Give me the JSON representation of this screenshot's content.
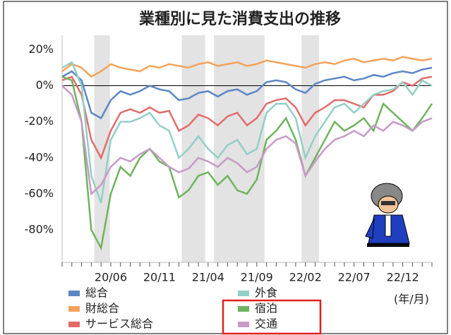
{
  "chart_data": {
    "type": "line",
    "title": "業種別に見た消費支出の推移",
    "x_label": "(年/月)",
    "categories": [
      null,
      null,
      null,
      null,
      null,
      "20/06",
      null,
      null,
      null,
      null,
      "20/11",
      null,
      null,
      null,
      null,
      "21/04",
      null,
      null,
      null,
      null,
      "21/09",
      null,
      null,
      null,
      null,
      "22/02",
      null,
      null,
      null,
      null,
      "22/07",
      null,
      null,
      null,
      null,
      "22/12",
      null,
      null,
      null
    ],
    "shaded_periods": [
      [
        3.3,
        4.9
      ],
      [
        12.3,
        14.7
      ],
      [
        15.6,
        20.8
      ],
      [
        24.6,
        26.4
      ]
    ],
    "ylim": [
      -98,
      28
    ],
    "yticks": [
      {
        "value": 20,
        "label": "20%"
      },
      {
        "value": 0,
        "label": "0%"
      },
      {
        "value": -20,
        "label": "-20%"
      },
      {
        "value": -40,
        "label": "-40%"
      },
      {
        "value": -60,
        "label": "-60%"
      },
      {
        "value": -80,
        "label": "-80%"
      }
    ],
    "series": [
      {
        "name": "総合",
        "color": "#5b87c5",
        "values": [
          5,
          8,
          3,
          -15,
          -18,
          -8,
          -3,
          -5,
          -3,
          0,
          -2,
          -3,
          -8,
          -7,
          -4,
          -3,
          -6,
          -3,
          -2,
          -5,
          -3,
          2,
          3,
          2,
          -2,
          -4,
          1,
          3,
          4,
          5,
          3,
          4,
          6,
          5,
          7,
          8,
          7,
          9,
          10
        ]
      },
      {
        "name": "財総合",
        "color": "#f4a259",
        "values": [
          8,
          12,
          10,
          5,
          8,
          12,
          10,
          9,
          8,
          11,
          10,
          12,
          11,
          10,
          12,
          13,
          11,
          12,
          13,
          11,
          12,
          14,
          13,
          12,
          11,
          10,
          12,
          13,
          12,
          14,
          15,
          13,
          14,
          15,
          14,
          16,
          15,
          14,
          15
        ]
      },
      {
        "name": "サービス総合",
        "color": "#e46b6b",
        "values": [
          3,
          5,
          -5,
          -30,
          -40,
          -25,
          -15,
          -13,
          -15,
          -12,
          -15,
          -14,
          -25,
          -22,
          -16,
          -18,
          -22,
          -17,
          -15,
          -22,
          -18,
          -10,
          -8,
          -7,
          -12,
          -22,
          -15,
          -12,
          -8,
          -8,
          -10,
          -12,
          -5,
          -5,
          -3,
          2,
          0,
          4,
          5
        ]
      },
      {
        "name": "外食",
        "color": "#93cfc6",
        "values": [
          10,
          13,
          0,
          -50,
          -65,
          -30,
          -20,
          -20,
          -18,
          -15,
          -22,
          -25,
          -40,
          -35,
          -28,
          -35,
          -40,
          -33,
          -30,
          -38,
          -35,
          -15,
          -10,
          -10,
          -18,
          -40,
          -28,
          -20,
          -12,
          -10,
          -15,
          -10,
          -5,
          -3,
          -2,
          2,
          -5,
          3,
          0
        ]
      },
      {
        "name": "宿泊",
        "color": "#6fb35e",
        "values": [
          5,
          3,
          -20,
          -80,
          -90,
          -60,
          -45,
          -50,
          -40,
          -35,
          -42,
          -45,
          -62,
          -58,
          -50,
          -48,
          -55,
          -50,
          -58,
          -60,
          -52,
          -30,
          -25,
          -18,
          -30,
          -50,
          -40,
          -30,
          -20,
          -25,
          -22,
          -18,
          -25,
          -10,
          -15,
          -20,
          -25,
          -18,
          -10
        ]
      },
      {
        "name": "交通",
        "color": "#c79ac7",
        "values": [
          0,
          -5,
          -20,
          -60,
          -55,
          -45,
          -40,
          -42,
          -38,
          -35,
          -40,
          -45,
          -48,
          -46,
          -40,
          -42,
          -45,
          -40,
          -43,
          -48,
          -45,
          -35,
          -30,
          -28,
          -32,
          -50,
          -42,
          -35,
          -30,
          -28,
          -25,
          -28,
          -22,
          -25,
          -20,
          -22,
          -25,
          -20,
          -18
        ]
      }
    ]
  }
}
